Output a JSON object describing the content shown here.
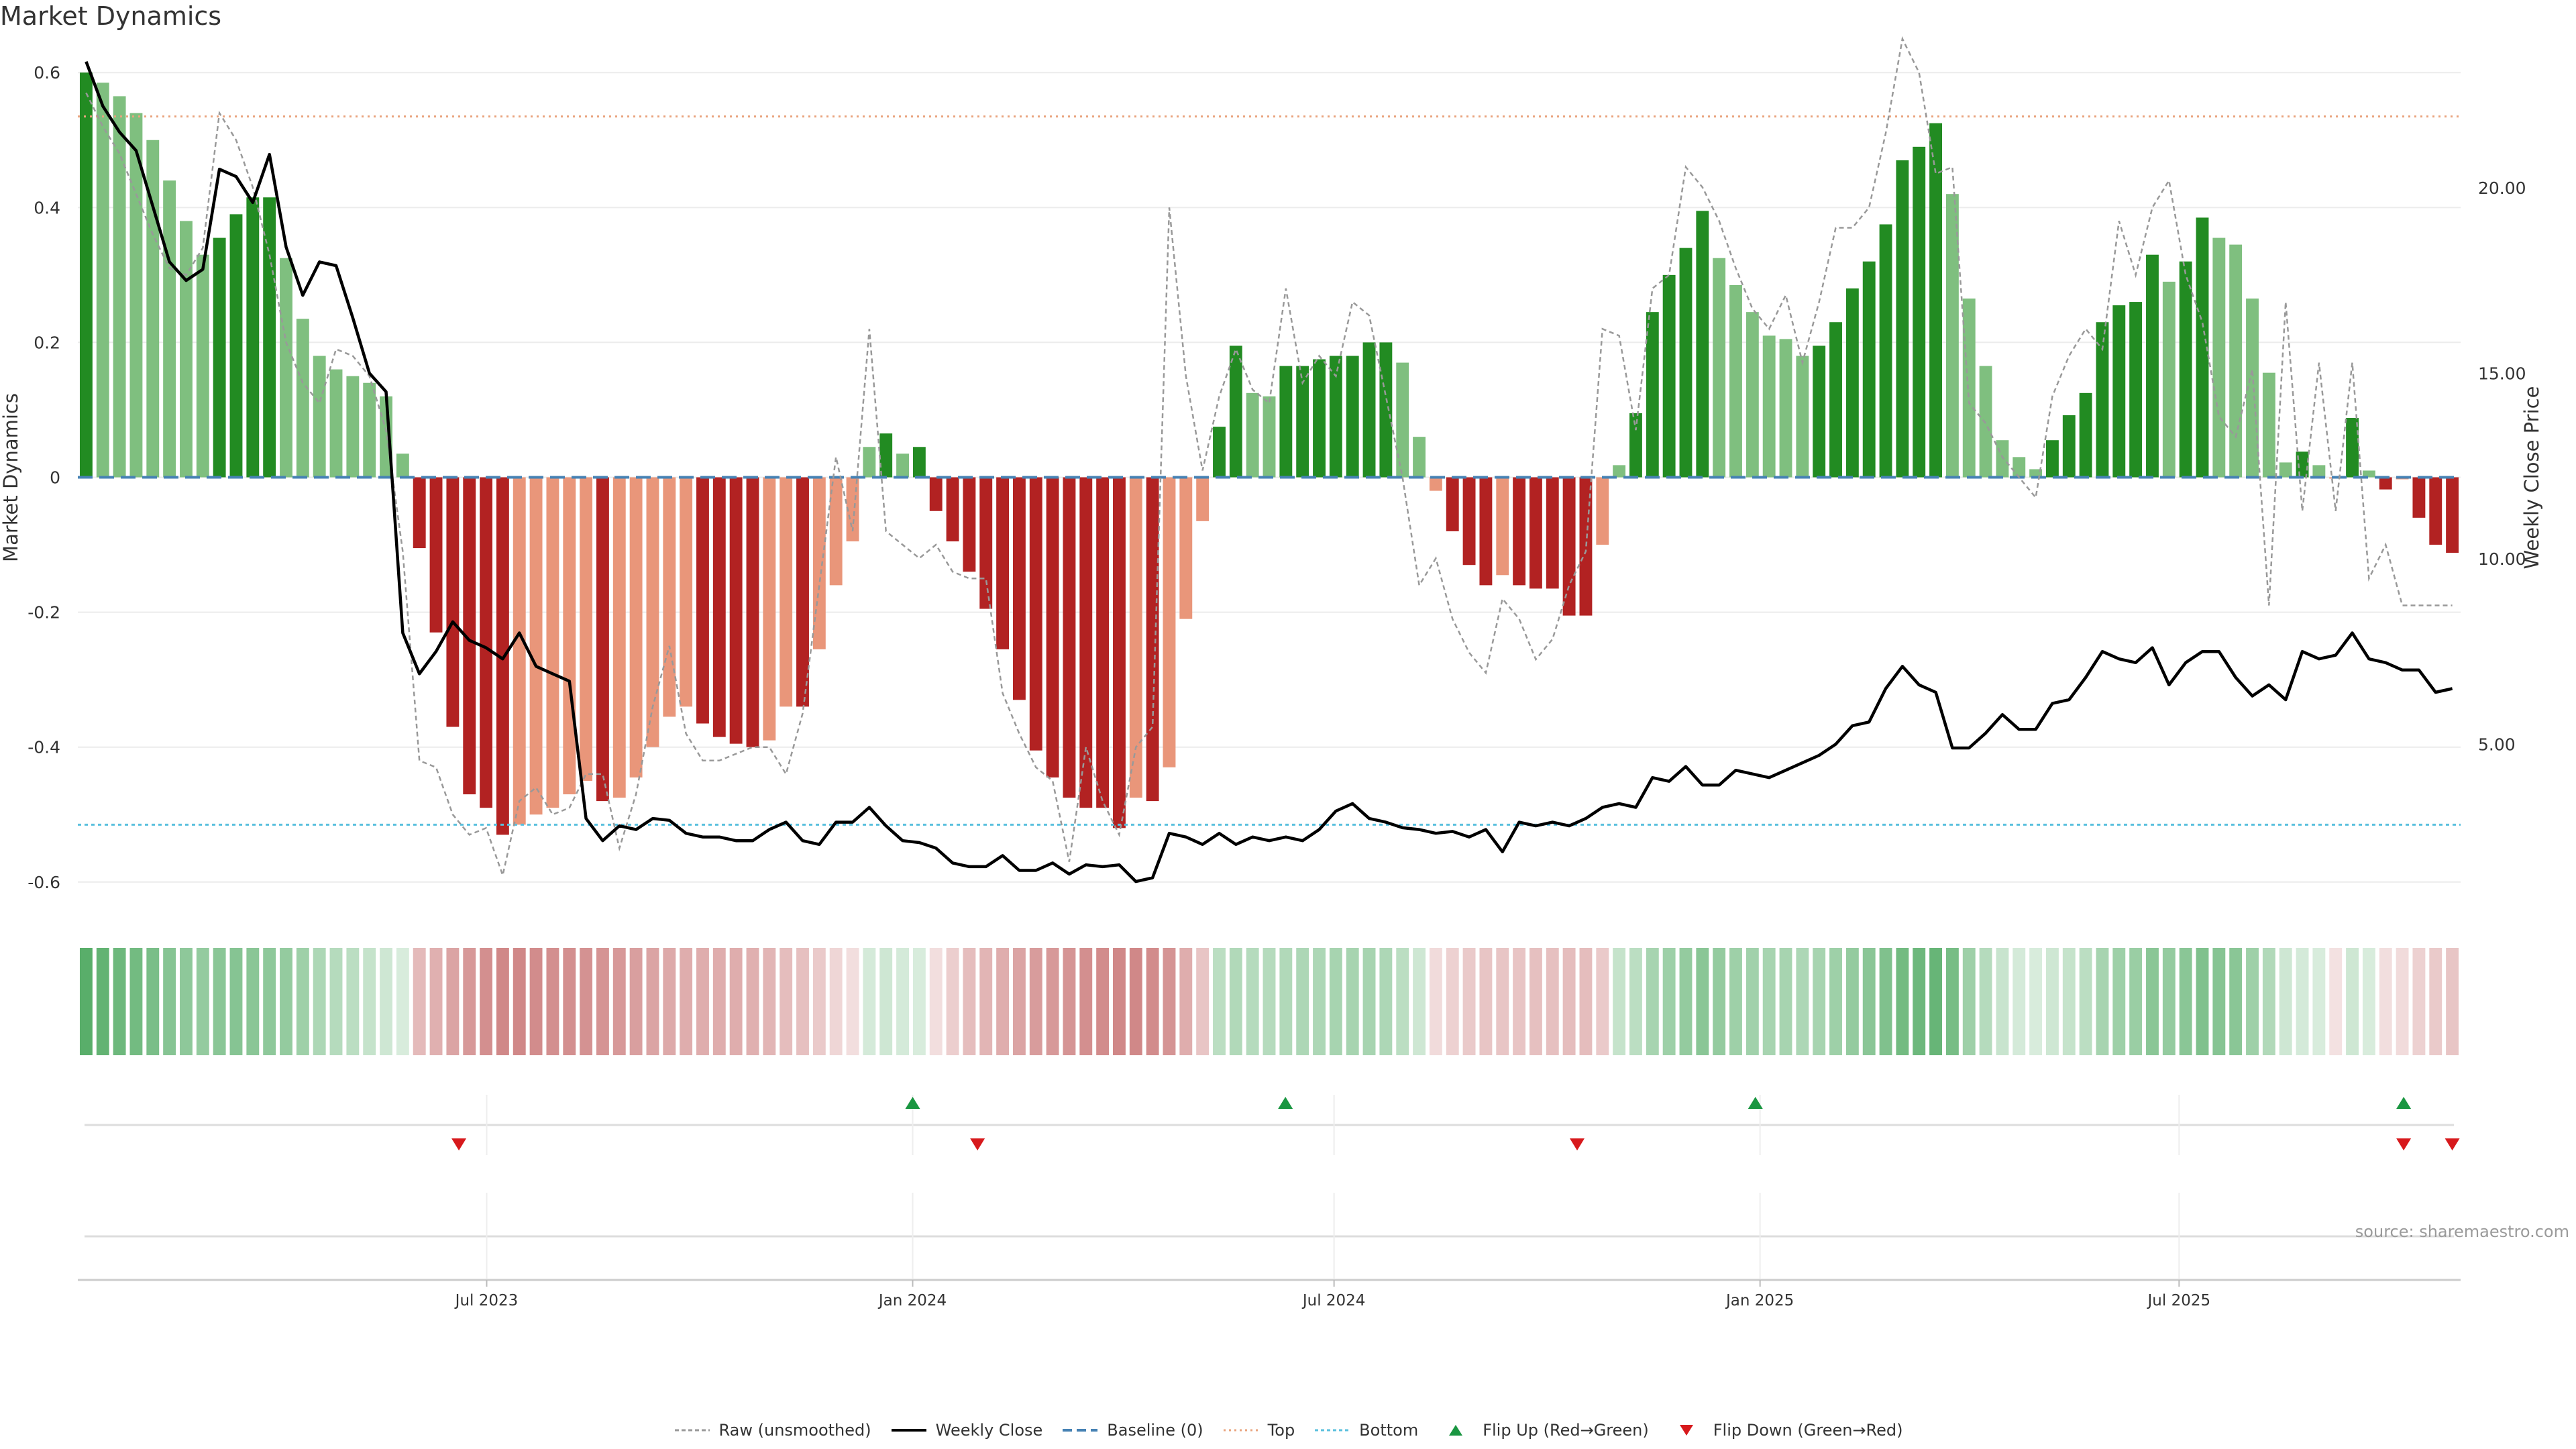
{
  "title": "Market Dynamics",
  "source": "source: sharemaestro.com",
  "colors": {
    "strong_green": "#228b22",
    "light_green": "#7fbf7f",
    "strong_red": "#b22222",
    "light_red": "#e9967a",
    "raw": "#999999",
    "close": "#000000",
    "baseline": "#4682b4",
    "top": "#e9a47e",
    "bottom": "#5bc0de",
    "flip_up": "#1a9641",
    "flip_down": "#d7191c"
  },
  "legend": [
    {
      "label": "Raw (unsmoothed)",
      "symbol": "raw"
    },
    {
      "label": "Weekly Close",
      "symbol": "close"
    },
    {
      "label": "Baseline (0)",
      "symbol": "baseline"
    },
    {
      "label": "Top",
      "symbol": "top"
    },
    {
      "label": "Bottom",
      "symbol": "bottom"
    },
    {
      "label": "Flip Up (Red→Green)",
      "symbol": "flip_up"
    },
    {
      "label": "Flip Down (Green→Red)",
      "symbol": "flip_down"
    }
  ],
  "chart_data": {
    "type": "bar",
    "title": "Market Dynamics",
    "ylabel": "Market Dynamics",
    "y2label": "Weekly Close Price",
    "ylim": [
      -0.64,
      0.64
    ],
    "y2lim": [
      0.56,
      23.83
    ],
    "yticks": [
      "0.6",
      "0.4",
      "0.2",
      "0",
      "-0.2",
      "-0.4",
      "-0.6"
    ],
    "y2ticks": [
      "20.00",
      "15.00",
      "10.00",
      "5.00"
    ],
    "x_start": "2023-01-09",
    "x_end": "2025-10-27",
    "xticks": [
      "Jul 2023",
      "Jan 2024",
      "Jul 2024",
      "Jan 2025",
      "Jul 2025"
    ],
    "xtick_dates": [
      "2023-07-01",
      "2024-01-01",
      "2024-07-01",
      "2025-01-01",
      "2025-07-01"
    ],
    "top_level": 0.535,
    "bottom_level": -0.515,
    "baseline": 0,
    "grid": true,
    "legend_position": "bottom",
    "series": [
      {
        "name": "Market Dynamics",
        "values": [
          0.6,
          0.585,
          0.565,
          0.54,
          0.5,
          0.44,
          0.38,
          0.33,
          0.355,
          0.39,
          0.415,
          0.415,
          0.325,
          0.235,
          0.18,
          0.16,
          0.15,
          0.14,
          0.12,
          0.035,
          -0.105,
          -0.23,
          -0.37,
          -0.47,
          -0.49,
          -0.53,
          -0.515,
          -0.5,
          -0.49,
          -0.47,
          -0.45,
          -0.48,
          -0.475,
          -0.445,
          -0.4,
          -0.355,
          -0.34,
          -0.365,
          -0.385,
          -0.395,
          -0.4,
          -0.39,
          -0.34,
          -0.34,
          -0.255,
          -0.16,
          -0.095,
          0.045,
          0.065,
          0.035,
          0.045,
          -0.05,
          -0.095,
          -0.14,
          -0.195,
          -0.255,
          -0.33,
          -0.405,
          -0.445,
          -0.475,
          -0.49,
          -0.49,
          -0.52,
          -0.475,
          -0.48,
          -0.43,
          -0.21,
          -0.065,
          0.075,
          0.195,
          0.125,
          0.12,
          0.165,
          0.165,
          0.175,
          0.18,
          0.18,
          0.2,
          0.2,
          0.17,
          0.06,
          -0.02,
          -0.08,
          -0.13,
          -0.16,
          -0.145,
          -0.16,
          -0.165,
          -0.165,
          -0.205,
          -0.205,
          -0.1,
          0.018,
          0.095,
          0.245,
          0.3,
          0.34,
          0.395,
          0.325,
          0.285,
          0.245,
          0.21,
          0.205,
          0.18,
          0.195,
          0.23,
          0.28,
          0.32,
          0.375,
          0.47,
          0.49,
          0.525,
          0.42,
          0.265,
          0.165,
          0.055,
          0.03,
          0.012,
          0.055,
          0.092,
          0.125,
          0.23,
          0.255,
          0.26,
          0.33,
          0.29,
          0.32,
          0.385,
          0.355,
          0.345,
          0.265,
          0.155,
          0.022,
          0.038,
          0.018,
          -0.002,
          0.088,
          0.01,
          -0.018,
          -0.003,
          -0.06,
          -0.1,
          -0.112
        ]
      },
      {
        "name": "Raw (unsmoothed)",
        "values": [
          0.57,
          0.52,
          0.48,
          0.42,
          0.36,
          0.31,
          0.3,
          0.34,
          0.54,
          0.5,
          0.43,
          0.33,
          0.2,
          0.14,
          0.11,
          0.19,
          0.18,
          0.15,
          0.07,
          -0.11,
          -0.42,
          -0.43,
          -0.5,
          -0.53,
          -0.52,
          -0.59,
          -0.48,
          -0.46,
          -0.5,
          -0.49,
          -0.44,
          -0.44,
          -0.55,
          -0.47,
          -0.34,
          -0.25,
          -0.38,
          -0.42,
          -0.42,
          -0.41,
          -0.4,
          -0.4,
          -0.44,
          -0.35,
          -0.16,
          0.03,
          -0.08,
          0.22,
          -0.08,
          -0.1,
          -0.12,
          -0.1,
          -0.14,
          -0.15,
          -0.15,
          -0.32,
          -0.38,
          -0.43,
          -0.45,
          -0.57,
          -0.4,
          -0.48,
          -0.53,
          -0.4,
          -0.37,
          0.4,
          0.15,
          0.01,
          0.12,
          0.19,
          0.13,
          0.11,
          0.28,
          0.14,
          0.18,
          0.15,
          0.26,
          0.24,
          0.12,
          0.0,
          -0.16,
          -0.12,
          -0.21,
          -0.26,
          -0.29,
          -0.18,
          -0.21,
          -0.27,
          -0.24,
          -0.16,
          -0.11,
          0.22,
          0.21,
          0.07,
          0.28,
          0.3,
          0.46,
          0.43,
          0.38,
          0.31,
          0.25,
          0.22,
          0.27,
          0.17,
          0.26,
          0.37,
          0.37,
          0.4,
          0.51,
          0.65,
          0.6,
          0.45,
          0.46,
          0.11,
          0.08,
          0.03,
          0.0,
          -0.03,
          0.12,
          0.18,
          0.22,
          0.19,
          0.38,
          0.3,
          0.4,
          0.44,
          0.3,
          0.23,
          0.09,
          0.06,
          0.16,
          -0.19,
          0.26,
          -0.05,
          0.17,
          -0.05,
          0.17,
          -0.15,
          -0.1,
          -0.19,
          -0.19,
          -0.19,
          -0.19
        ]
      },
      {
        "name": "Weekly Close",
        "values": [
          23.4,
          22.2,
          21.5,
          21.0,
          19.5,
          18.0,
          17.5,
          17.8,
          20.5,
          20.3,
          19.6,
          20.9,
          18.4,
          17.1,
          18.0,
          17.9,
          16.5,
          15.0,
          14.5,
          8.0,
          6.9,
          7.5,
          8.3,
          7.8,
          7.6,
          7.3,
          8.0,
          7.1,
          6.9,
          6.7,
          3.0,
          2.4,
          2.8,
          2.7,
          3.0,
          2.95,
          2.6,
          2.5,
          2.5,
          2.4,
          2.4,
          2.7,
          2.9,
          2.4,
          2.3,
          2.9,
          2.9,
          3.3,
          2.8,
          2.4,
          2.35,
          2.2,
          1.8,
          1.7,
          1.7,
          2.0,
          1.6,
          1.6,
          1.8,
          1.5,
          1.75,
          1.7,
          1.75,
          1.3,
          1.4,
          2.6,
          2.5,
          2.3,
          2.6,
          2.3,
          2.5,
          2.4,
          2.5,
          2.4,
          2.7,
          3.2,
          3.4,
          3.0,
          2.9,
          2.75,
          2.7,
          2.6,
          2.65,
          2.5,
          2.7,
          2.1,
          2.9,
          2.8,
          2.9,
          2.8,
          3.0,
          3.3,
          3.4,
          3.3,
          4.1,
          4.0,
          4.4,
          3.9,
          3.9,
          4.3,
          4.2,
          4.1,
          4.3,
          4.5,
          4.7,
          5.0,
          5.5,
          5.6,
          6.5,
          7.1,
          6.6,
          6.4,
          4.9,
          4.9,
          5.3,
          5.8,
          5.4,
          5.4,
          6.1,
          6.2,
          6.8,
          7.5,
          7.3,
          7.2,
          7.6,
          6.6,
          7.2,
          7.5,
          7.5,
          6.8,
          6.3,
          6.6,
          6.2,
          7.5,
          7.3,
          7.4,
          8.0,
          7.3,
          7.2,
          7.0,
          7.0,
          6.4,
          6.5
        ]
      }
    ],
    "strip_intensity": [
      0.85,
      0.8,
      0.75,
      0.72,
      0.68,
      0.62,
      0.58,
      0.55,
      0.6,
      0.62,
      0.6,
      0.58,
      0.55,
      0.5,
      0.42,
      0.38,
      0.35,
      0.3,
      0.25,
      0.2,
      0.42,
      0.48,
      0.55,
      0.62,
      0.68,
      0.72,
      0.72,
      0.7,
      0.68,
      0.68,
      0.66,
      0.65,
      0.62,
      0.58,
      0.55,
      0.52,
      0.5,
      0.5,
      0.5,
      0.5,
      0.48,
      0.45,
      0.4,
      0.38,
      0.32,
      0.25,
      0.2,
      0.22,
      0.25,
      0.22,
      0.2,
      0.2,
      0.3,
      0.4,
      0.45,
      0.5,
      0.55,
      0.6,
      0.62,
      0.65,
      0.68,
      0.7,
      0.72,
      0.72,
      0.7,
      0.65,
      0.5,
      0.35,
      0.35,
      0.4,
      0.38,
      0.38,
      0.4,
      0.42,
      0.42,
      0.45,
      0.45,
      0.45,
      0.42,
      0.35,
      0.25,
      0.22,
      0.28,
      0.32,
      0.35,
      0.35,
      0.36,
      0.38,
      0.38,
      0.4,
      0.4,
      0.32,
      0.3,
      0.35,
      0.45,
      0.5,
      0.55,
      0.6,
      0.55,
      0.5,
      0.48,
      0.45,
      0.45,
      0.42,
      0.45,
      0.5,
      0.55,
      0.6,
      0.65,
      0.72,
      0.75,
      0.78,
      0.7,
      0.5,
      0.38,
      0.28,
      0.22,
      0.2,
      0.25,
      0.3,
      0.35,
      0.45,
      0.5,
      0.52,
      0.6,
      0.55,
      0.6,
      0.65,
      0.62,
      0.6,
      0.5,
      0.4,
      0.25,
      0.22,
      0.2,
      0.18,
      0.25,
      0.2,
      0.2,
      0.22,
      0.28,
      0.32,
      0.35
    ],
    "flip_up_dates": [
      "2024-01-01",
      "2024-06-10",
      "2024-12-30",
      "2025-10-06"
    ],
    "flip_down_dates": [
      "2023-06-19",
      "2024-01-29",
      "2024-10-14",
      "2025-10-06",
      "2025-10-27"
    ]
  }
}
